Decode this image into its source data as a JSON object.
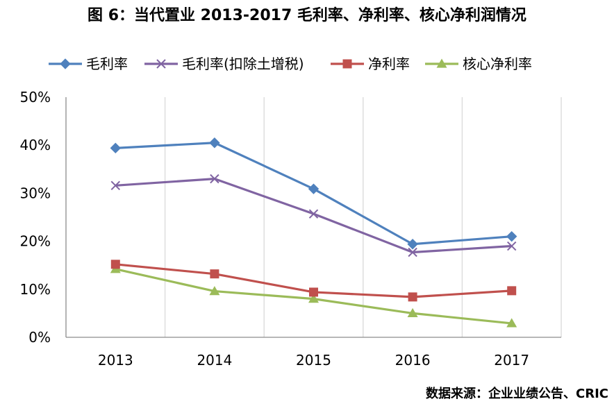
{
  "chart_data": {
    "type": "line",
    "title": "图 6：当代置业 2013-2017 毛利率、净利率、核心净利润情况",
    "source": "数据来源：企业业绩公告、CRIC",
    "categories": [
      "2013",
      "2014",
      "2015",
      "2016",
      "2017"
    ],
    "ylim": [
      0,
      50
    ],
    "yticks": [
      0,
      10,
      20,
      30,
      40,
      50
    ],
    "ytick_labels": [
      "0%",
      "10%",
      "20%",
      "30%",
      "40%",
      "50%"
    ],
    "xlabel": "",
    "ylabel": "",
    "grid": "vertical",
    "legend_position": "top",
    "series": [
      {
        "name": "毛利率",
        "marker": "diamond",
        "color": "#4F81BD",
        "values": [
          39.4,
          40.5,
          30.9,
          19.4,
          21.0
        ]
      },
      {
        "name": "毛利率(扣除土增税)",
        "marker": "x",
        "color": "#8064A2",
        "values": [
          31.6,
          33.0,
          25.7,
          17.7,
          19.0
        ]
      },
      {
        "name": "净利率",
        "marker": "square",
        "color": "#C0504D",
        "values": [
          15.2,
          13.2,
          9.4,
          8.4,
          9.7
        ]
      },
      {
        "name": "核心净利率",
        "marker": "triangle",
        "color": "#9BBB59",
        "values": [
          14.2,
          9.6,
          8.0,
          5.0,
          2.9
        ]
      }
    ]
  }
}
